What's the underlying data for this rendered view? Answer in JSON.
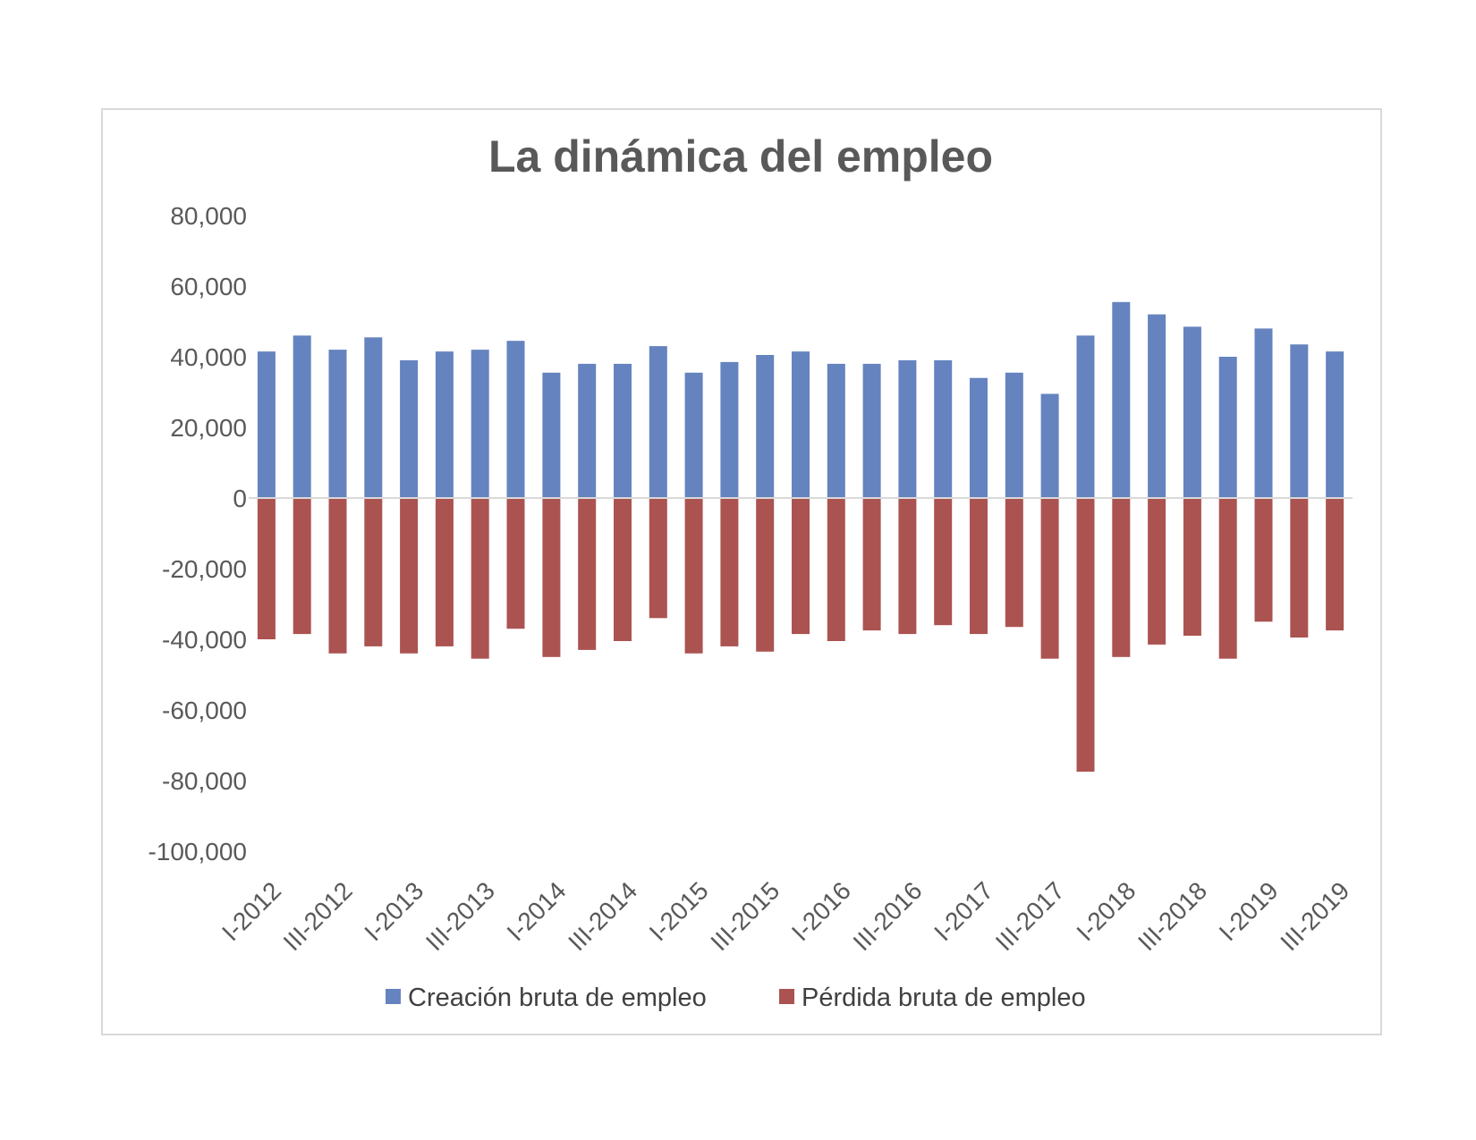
{
  "chart_data": {
    "type": "bar",
    "title": "La dinámica del empleo",
    "xlabel": "",
    "ylabel": "",
    "ylim": [
      -100000,
      80000
    ],
    "yticks": [
      80000,
      60000,
      40000,
      20000,
      0,
      -20000,
      -40000,
      -60000,
      -80000,
      -100000
    ],
    "ytick_labels": [
      "80,000",
      "60,000",
      "40,000",
      "20,000",
      "0",
      "-20,000",
      "-40,000",
      "-60,000",
      "-80,000",
      "-100,000"
    ],
    "categories": [
      "I-2012",
      "II-2012",
      "III-2012",
      "IV-2012",
      "I-2013",
      "II-2013",
      "III-2013",
      "IV-2013",
      "I-2014",
      "II-2014",
      "III-2014",
      "IV-2014",
      "I-2015",
      "II-2015",
      "III-2015",
      "IV-2015",
      "I-2016",
      "II-2016",
      "III-2016",
      "IV-2016",
      "I-2017",
      "II-2017",
      "III-2017",
      "IV-2017",
      "I-2018",
      "II-2018",
      "III-2018",
      "IV-2018",
      "I-2019",
      "II-2019",
      "III-2019"
    ],
    "visible_xtick_labels": [
      "I-2012",
      "III-2012",
      "I-2013",
      "III-2013",
      "I-2014",
      "III-2014",
      "I-2015",
      "III-2015",
      "I-2016",
      "III-2016",
      "I-2017",
      "III-2017",
      "I-2018",
      "III-2018",
      "I-2019",
      "III-2019"
    ],
    "grid": false,
    "legend_position": "bottom",
    "series": [
      {
        "name": "Creación bruta de empleo",
        "color": "#6583bf",
        "values": [
          41500,
          46000,
          42000,
          45500,
          39000,
          41500,
          42000,
          44500,
          35500,
          38000,
          38000,
          43000,
          35500,
          38500,
          40500,
          41500,
          38000,
          38000,
          39000,
          39000,
          34000,
          35500,
          29500,
          46000,
          55500,
          52000,
          48500,
          40000,
          48000,
          43500,
          41500
        ]
      },
      {
        "name": "Pérdida bruta de empleo",
        "color": "#ab5351",
        "values": [
          -40000,
          -38500,
          -44000,
          -42000,
          -44000,
          -42000,
          -45500,
          -37000,
          -45000,
          -43000,
          -40500,
          -34000,
          -44000,
          -42000,
          -43500,
          -38500,
          -40500,
          -37500,
          -38500,
          -36000,
          -38500,
          -36500,
          -45500,
          -77500,
          -45000,
          -41500,
          -39000,
          -45500,
          -35000,
          -39500,
          -37500
        ]
      }
    ]
  }
}
